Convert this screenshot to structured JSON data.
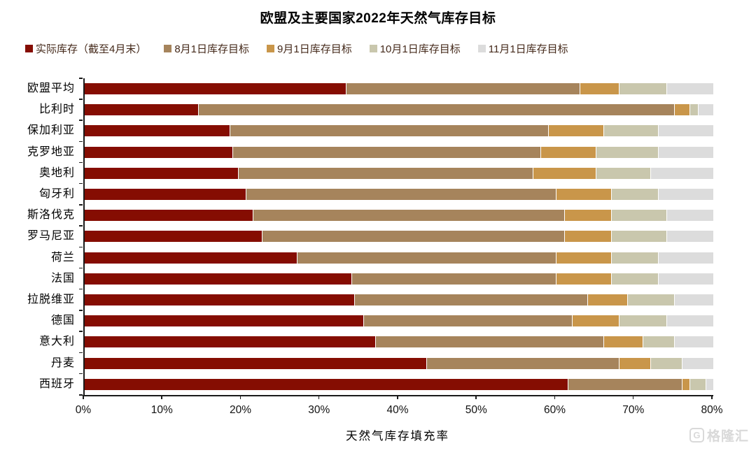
{
  "title": "欧盟及主要国家2022年天然气库存目标",
  "legend": [
    {
      "label": "实际库存（截至4月末）",
      "color": "#850d02"
    },
    {
      "label": "8月1日库存目标",
      "color": "#a6845c"
    },
    {
      "label": "9月1日库存目标",
      "color": "#c9964a"
    },
    {
      "label": "10月1日库存目标",
      "color": "#c9c7ad"
    },
    {
      "label": "11月1日库存目标",
      "color": "#dcdcdc"
    }
  ],
  "chart_data": {
    "type": "bar",
    "orientation": "horizontal",
    "stacked": true,
    "values_are_cumulative": true,
    "title": "欧盟及主要国家2022年天然气库存目标",
    "xlabel": "天然气库存填充率",
    "ylabel": "",
    "xlim": [
      0,
      80
    ],
    "x_ticks": [
      "0%",
      "10%",
      "20%",
      "30%",
      "40%",
      "50%",
      "60%",
      "70%",
      "80%"
    ],
    "grid": false,
    "legend_position": "top-left",
    "categories": [
      "欧盟平均",
      "比利时",
      "保加利亚",
      "克罗地亚",
      "奥地利",
      "匈牙利",
      "斯洛伐克",
      "罗马尼亚",
      "荷兰",
      "法国",
      "拉脱维亚",
      "德国",
      "意大利",
      "丹麦",
      "西班牙"
    ],
    "series": [
      {
        "name": "实际库存（截至4月末）",
        "color": "#850d02",
        "values": [
          33.2,
          14.4,
          18.4,
          18.8,
          19.5,
          20.5,
          21.4,
          22.5,
          27.0,
          33.9,
          34.3,
          35.5,
          37.0,
          43.5,
          61.5
        ]
      },
      {
        "name": "8月1日库存目标",
        "color": "#a6845c",
        "values": [
          63,
          75,
          59,
          58,
          57,
          60,
          61,
          61,
          60,
          60,
          64,
          62,
          66,
          68,
          76
        ]
      },
      {
        "name": "9月1日库存目标",
        "color": "#c9964a",
        "values": [
          68,
          77,
          66,
          65,
          65,
          67,
          67,
          67,
          67,
          67,
          69,
          68,
          71,
          72,
          77
        ]
      },
      {
        "name": "10月1日库存目标",
        "color": "#c9c7ad",
        "values": [
          74,
          78,
          73,
          73,
          72,
          73,
          74,
          74,
          73,
          73,
          75,
          74,
          75,
          76,
          79
        ]
      },
      {
        "name": "11月1日库存目标",
        "color": "#dcdcdc",
        "values": [
          80,
          80,
          80,
          80,
          80,
          80,
          80,
          80,
          80,
          80,
          80,
          80,
          80,
          80,
          80
        ]
      }
    ]
  },
  "watermark": {
    "logo_letter": "G",
    "text": "格隆汇"
  }
}
